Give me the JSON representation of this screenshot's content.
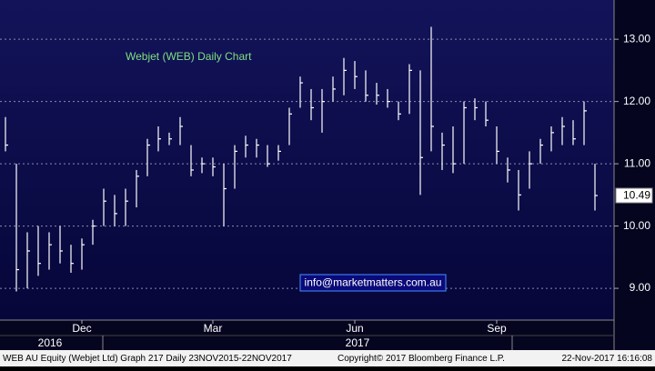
{
  "chart_data": {
    "type": "hlc",
    "title": "Webjet (WEB) Daily Chart",
    "annotation": "info@marketmatters.com.au",
    "categories": [
      null,
      null,
      null,
      null,
      null,
      null,
      null,
      "Dec",
      null,
      null,
      null,
      null,
      null,
      null,
      null,
      null,
      null,
      null,
      null,
      "Mar",
      null,
      null,
      null,
      null,
      null,
      null,
      null,
      null,
      null,
      null,
      null,
      null,
      "Jun",
      null,
      null,
      null,
      null,
      null,
      null,
      null,
      null,
      null,
      null,
      null,
      null,
      "Sep",
      null,
      null,
      null,
      null,
      null,
      null,
      null,
      null,
      null
    ],
    "year_labels": [
      "2016",
      "2017"
    ],
    "high": [
      11.75,
      11.0,
      9.9,
      10.0,
      9.9,
      10.0,
      9.7,
      9.8,
      10.1,
      10.6,
      10.5,
      10.6,
      10.9,
      11.4,
      11.6,
      11.5,
      11.75,
      11.3,
      11.1,
      11.1,
      11.0,
      11.3,
      11.45,
      11.4,
      11.3,
      11.3,
      11.9,
      12.4,
      12.2,
      12.2,
      12.4,
      12.7,
      12.65,
      12.5,
      12.3,
      12.2,
      12.0,
      12.6,
      12.5,
      13.2,
      11.5,
      11.6,
      12.0,
      12.05,
      12.0,
      11.6,
      11.1,
      10.9,
      11.2,
      11.4,
      11.6,
      11.75,
      11.7,
      12.0,
      11.0
    ],
    "low": [
      11.2,
      8.95,
      9.0,
      9.2,
      9.3,
      9.4,
      9.25,
      9.3,
      9.7,
      10.0,
      10.0,
      10.0,
      10.3,
      10.8,
      11.2,
      11.3,
      11.3,
      10.8,
      10.85,
      10.8,
      10.0,
      10.6,
      11.1,
      11.1,
      10.95,
      11.05,
      11.3,
      11.9,
      11.7,
      11.5,
      12.0,
      12.1,
      12.2,
      12.0,
      11.95,
      11.9,
      11.7,
      11.8,
      10.5,
      11.2,
      10.9,
      10.85,
      11.0,
      11.7,
      11.6,
      11.0,
      10.7,
      10.25,
      10.6,
      11.0,
      11.2,
      11.3,
      11.3,
      11.3,
      10.25
    ],
    "close": [
      11.3,
      9.3,
      9.6,
      9.4,
      9.7,
      9.6,
      9.4,
      9.7,
      10.0,
      10.4,
      10.2,
      10.4,
      10.8,
      11.3,
      11.4,
      11.4,
      11.6,
      10.9,
      11.0,
      10.95,
      10.6,
      11.2,
      11.3,
      11.3,
      11.0,
      11.2,
      11.8,
      12.3,
      11.9,
      12.0,
      12.2,
      12.5,
      12.4,
      12.1,
      12.1,
      12.0,
      11.8,
      12.5,
      11.1,
      11.6,
      11.3,
      11.0,
      11.9,
      11.9,
      11.7,
      11.2,
      10.9,
      10.5,
      11.0,
      11.3,
      11.5,
      11.6,
      11.4,
      11.85,
      10.49
    ],
    "color": "#ffffff",
    "ylim": [
      8.49,
      13.63
    ],
    "yticks": [
      {
        "value": 9,
        "label": "9.00"
      },
      {
        "value": 10,
        "label": "10.00"
      },
      {
        "value": 11,
        "label": "11.00"
      },
      {
        "value": 12,
        "label": "12.00"
      },
      {
        "value": 13,
        "label": "13.00"
      }
    ],
    "grid": true
  },
  "footer": {
    "left": "WEB AU Equity (Webjet Ltd) Graph 217  Daily 23NOV2015-22NOV2017",
    "center": "Copyright© 2017 Bloomberg Finance L.P.",
    "right": "22-Nov-2017 16:16:08"
  }
}
